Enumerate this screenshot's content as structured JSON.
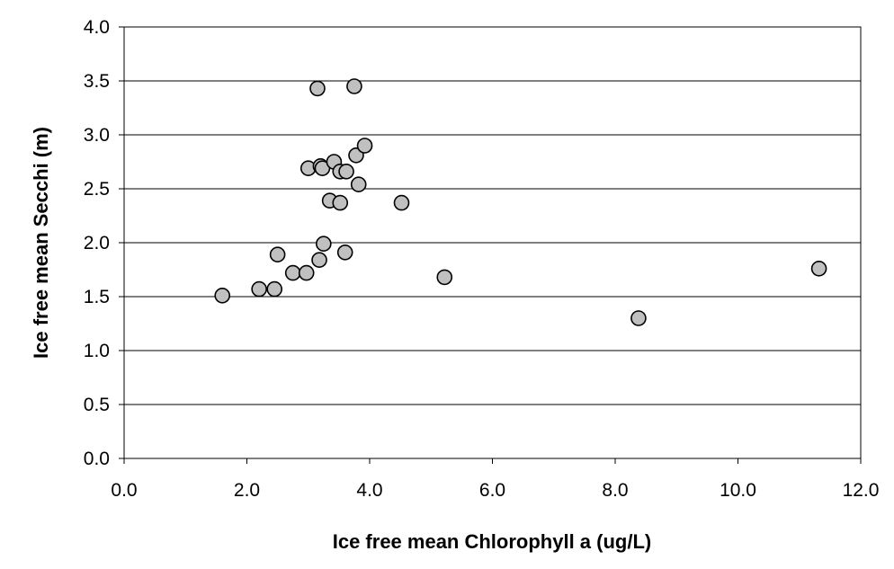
{
  "chart_data": {
    "type": "scatter",
    "xlabel": "Ice free mean Chlorophyll a (ug/L)",
    "ylabel": "Ice free mean Secchi (m)",
    "xlim": [
      0,
      12
    ],
    "ylim": [
      0,
      4
    ],
    "xticks": [
      "0.0",
      "2.0",
      "4.0",
      "6.0",
      "8.0",
      "10.0",
      "12.0"
    ],
    "yticks": [
      "0.0",
      "0.5",
      "1.0",
      "1.5",
      "2.0",
      "2.5",
      "3.0",
      "3.5",
      "4.0"
    ],
    "grid": "horizontal",
    "marker_color": "#c0c0c0",
    "points": [
      {
        "x": 1.6,
        "y": 1.51
      },
      {
        "x": 2.2,
        "y": 1.57
      },
      {
        "x": 2.45,
        "y": 1.57
      },
      {
        "x": 2.5,
        "y": 1.89
      },
      {
        "x": 2.75,
        "y": 1.72
      },
      {
        "x": 2.97,
        "y": 1.72
      },
      {
        "x": 3.0,
        "y": 2.69
      },
      {
        "x": 3.15,
        "y": 3.43
      },
      {
        "x": 3.18,
        "y": 1.84
      },
      {
        "x": 3.2,
        "y": 2.71
      },
      {
        "x": 3.23,
        "y": 2.69
      },
      {
        "x": 3.25,
        "y": 1.99
      },
      {
        "x": 3.35,
        "y": 2.39
      },
      {
        "x": 3.42,
        "y": 2.75
      },
      {
        "x": 3.52,
        "y": 2.37
      },
      {
        "x": 3.52,
        "y": 2.66
      },
      {
        "x": 3.6,
        "y": 1.91
      },
      {
        "x": 3.62,
        "y": 2.66
      },
      {
        "x": 3.75,
        "y": 3.45
      },
      {
        "x": 3.78,
        "y": 2.81
      },
      {
        "x": 3.82,
        "y": 2.54
      },
      {
        "x": 3.92,
        "y": 2.9
      },
      {
        "x": 4.52,
        "y": 2.37
      },
      {
        "x": 5.22,
        "y": 1.68
      },
      {
        "x": 8.38,
        "y": 1.3
      },
      {
        "x": 11.32,
        "y": 1.76
      }
    ]
  }
}
